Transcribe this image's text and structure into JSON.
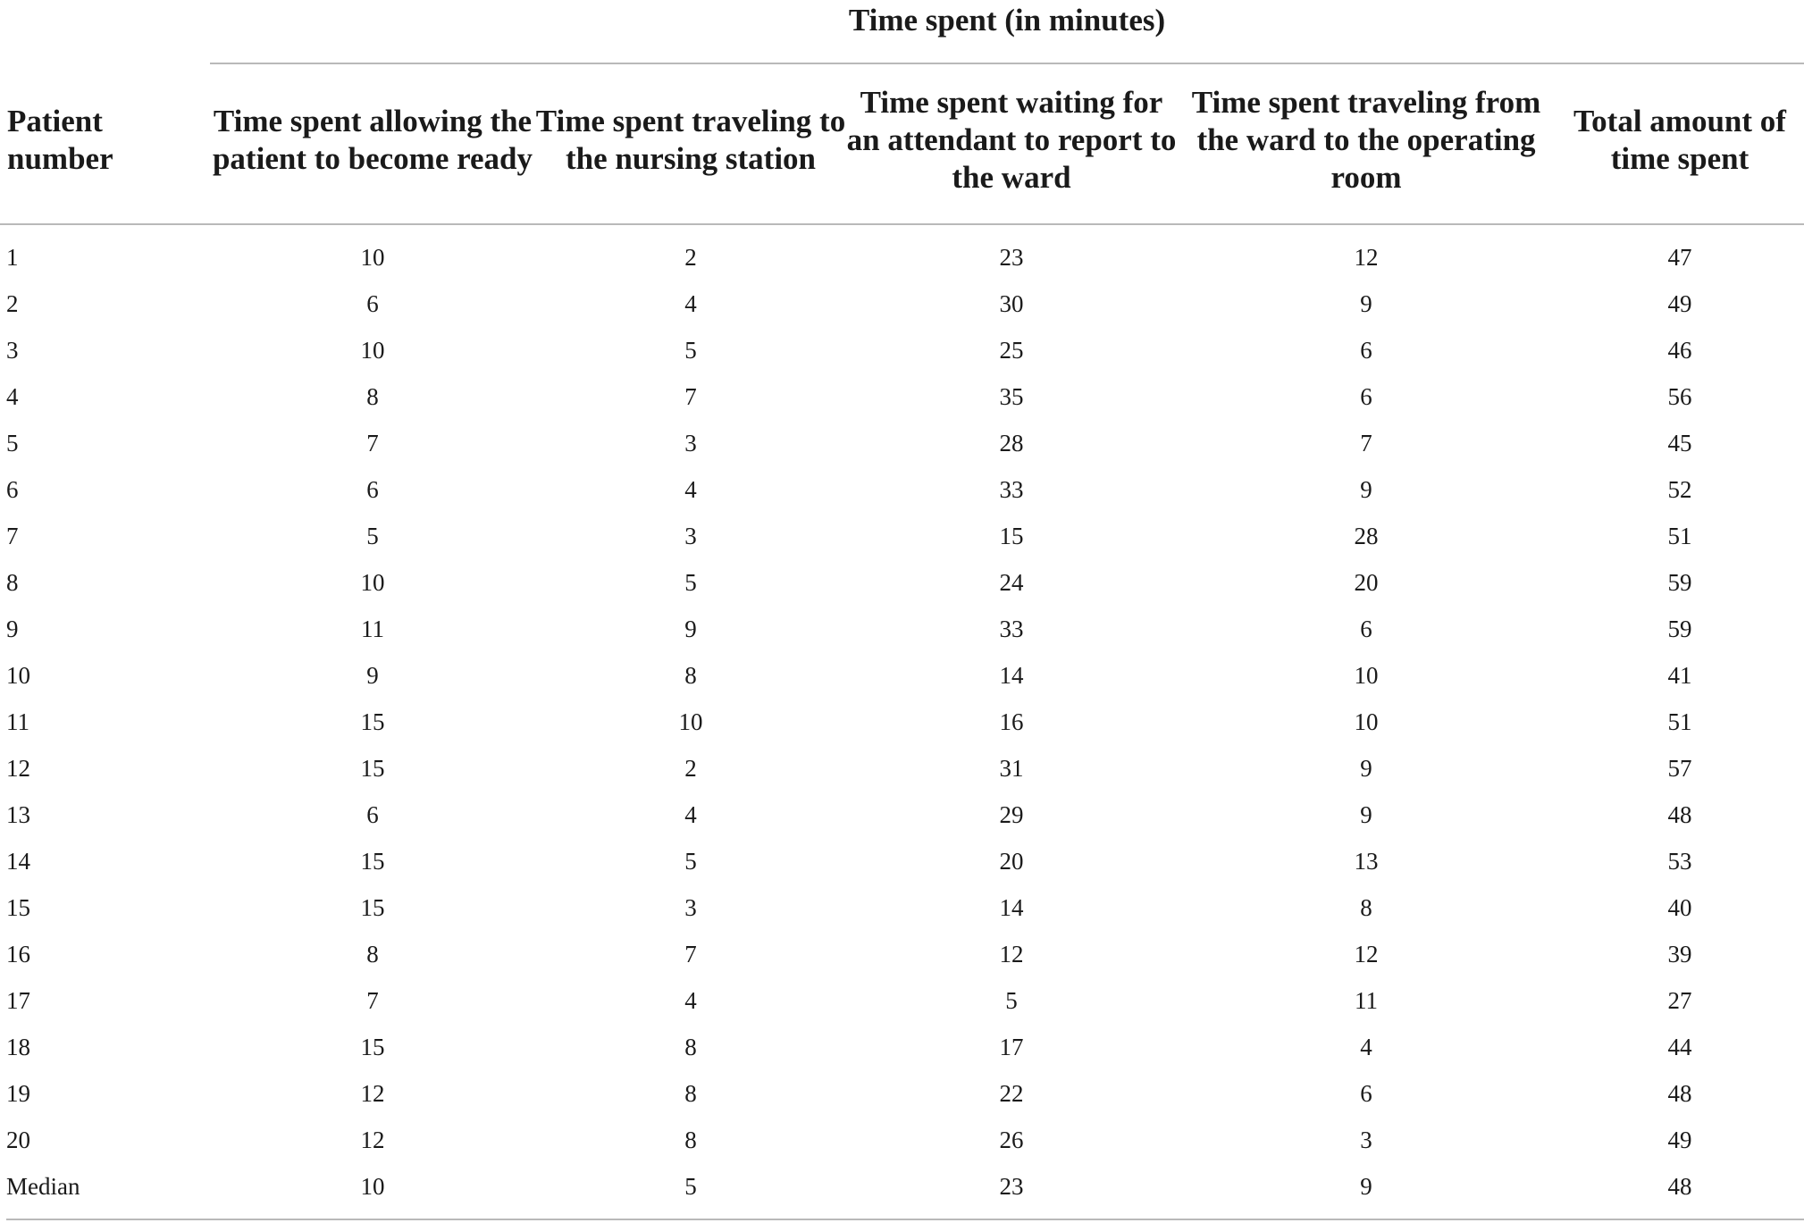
{
  "table": {
    "group_header": "Time spent (in minutes)",
    "columns": [
      "Patient number",
      "Time spent allowing the patient to become ready",
      "Time spent traveling to the nursing station",
      "Time spent waiting for an attendant to report to the ward",
      "Time spent traveling from the ward to the operating room",
      "Total amount of time spent"
    ],
    "rows": [
      [
        "1",
        "10",
        "2",
        "23",
        "12",
        "47"
      ],
      [
        "2",
        "6",
        "4",
        "30",
        "9",
        "49"
      ],
      [
        "3",
        "10",
        "5",
        "25",
        "6",
        "46"
      ],
      [
        "4",
        "8",
        "7",
        "35",
        "6",
        "56"
      ],
      [
        "5",
        "7",
        "3",
        "28",
        "7",
        "45"
      ],
      [
        "6",
        "6",
        "4",
        "33",
        "9",
        "52"
      ],
      [
        "7",
        "5",
        "3",
        "15",
        "28",
        "51"
      ],
      [
        "8",
        "10",
        "5",
        "24",
        "20",
        "59"
      ],
      [
        "9",
        "11",
        "9",
        "33",
        "6",
        "59"
      ],
      [
        "10",
        "9",
        "8",
        "14",
        "10",
        "41"
      ],
      [
        "11",
        "15",
        "10",
        "16",
        "10",
        "51"
      ],
      [
        "12",
        "15",
        "2",
        "31",
        "9",
        "57"
      ],
      [
        "13",
        "6",
        "4",
        "29",
        "9",
        "48"
      ],
      [
        "14",
        "15",
        "5",
        "20",
        "13",
        "53"
      ],
      [
        "15",
        "15",
        "3",
        "14",
        "8",
        "40"
      ],
      [
        "16",
        "8",
        "7",
        "12",
        "12",
        "39"
      ],
      [
        "17",
        "7",
        "4",
        "5",
        "11",
        "27"
      ],
      [
        "18",
        "15",
        "8",
        "17",
        "4",
        "44"
      ],
      [
        "19",
        "12",
        "8",
        "22",
        "6",
        "48"
      ],
      [
        "20",
        "12",
        "8",
        "26",
        "3",
        "49"
      ],
      [
        "Median",
        "10",
        "5",
        "23",
        "9",
        "48"
      ]
    ]
  }
}
